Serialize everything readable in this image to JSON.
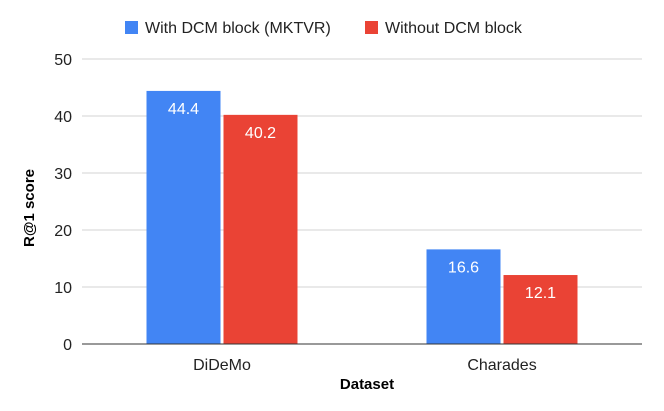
{
  "chart_data": {
    "type": "bar",
    "title": "",
    "xlabel": "Dataset",
    "ylabel": "R@1 score",
    "categories": [
      "DiDeMo",
      "Charades"
    ],
    "series": [
      {
        "name": "With DCM block (MKTVR)",
        "color": "#4285f4",
        "values": [
          44.4,
          16.6
        ]
      },
      {
        "name": "Without DCM block",
        "color": "#ea4335",
        "values": [
          40.2,
          12.1
        ]
      }
    ],
    "ylim": [
      0,
      50
    ],
    "yticks": [
      0,
      10,
      20,
      30,
      40,
      50
    ],
    "grid": true,
    "legend_position": "top",
    "data_labels": true
  }
}
